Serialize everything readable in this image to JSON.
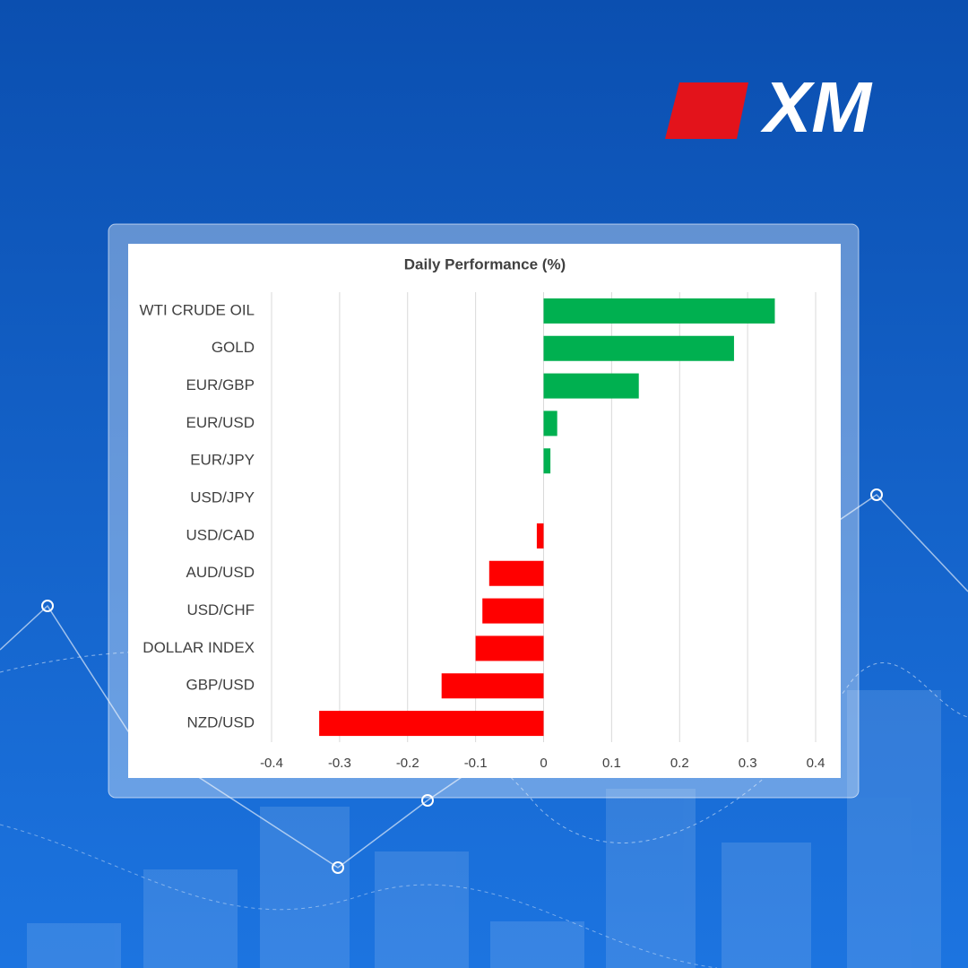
{
  "logo": "XM",
  "chart_data": {
    "type": "hbar",
    "title": "Daily Performance (%)",
    "categories": [
      "WTI CRUDE OIL",
      "GOLD",
      "EUR/GBP",
      "EUR/USD",
      "EUR/JPY",
      "USD/JPY",
      "USD/CAD",
      "AUD/USD",
      "USD/CHF",
      "DOLLAR INDEX",
      "GBP/USD",
      "NZD/USD"
    ],
    "values": [
      0.34,
      0.28,
      0.14,
      0.02,
      0.01,
      0,
      -0.01,
      -0.08,
      -0.09,
      -0.1,
      -0.15,
      -0.33
    ],
    "positive_color": "#00b050",
    "negative_color": "#ff0000",
    "xlim": [
      -0.4,
      0.4
    ],
    "xticks": [
      -0.4,
      -0.3,
      -0.2,
      -0.1,
      0,
      0.1,
      0.2,
      0.3,
      0.4
    ],
    "grid": true
  }
}
